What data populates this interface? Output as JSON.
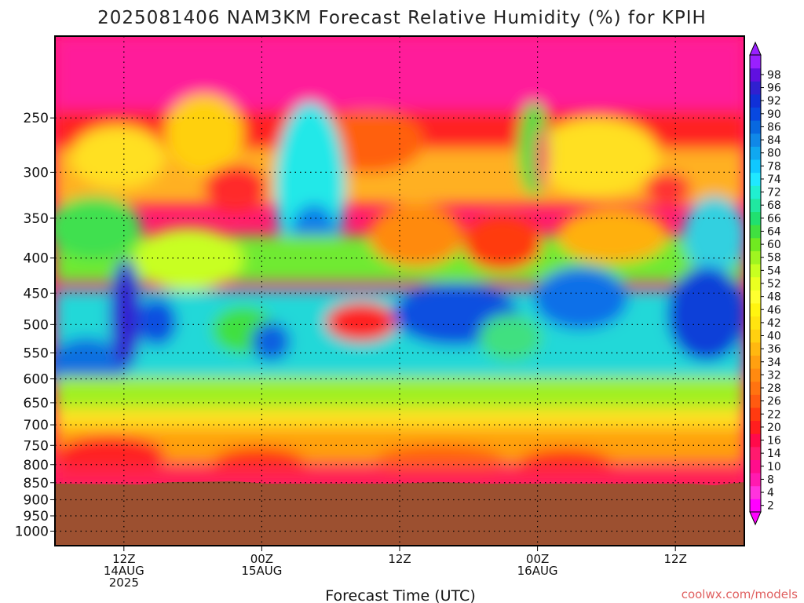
{
  "chart_data": {
    "type": "heatmap",
    "title": "2025081406 NAM3KM Forecast Relative Humidity (%) for KPIH",
    "xlabel": "Forecast Time (UTC)",
    "ylabel": "",
    "y_scale": "log-pressure (hPa), inverted",
    "ylim": [
      1050,
      190
    ],
    "y_ticks": [
      250,
      300,
      350,
      400,
      450,
      500,
      550,
      600,
      650,
      700,
      750,
      800,
      850,
      900,
      950,
      1000
    ],
    "x_ticks": [
      {
        "time": "2025-08-14 12Z",
        "lines": [
          "12Z",
          "14AUG",
          "2025"
        ]
      },
      {
        "time": "2025-08-15 00Z",
        "lines": [
          "00Z",
          "15AUG"
        ]
      },
      {
        "time": "2025-08-15 12Z",
        "lines": [
          "12Z"
        ]
      },
      {
        "time": "2025-08-16 00Z",
        "lines": [
          "00Z",
          "16AUG"
        ]
      },
      {
        "time": "2025-08-16 12Z",
        "lines": [
          "12Z"
        ]
      }
    ],
    "xlim": [
      "2025-08-14 06Z",
      "2025-08-16 18Z"
    ],
    "grid": true,
    "colorbar_levels": [
      2,
      4,
      8,
      10,
      14,
      16,
      20,
      22,
      26,
      28,
      32,
      34,
      36,
      40,
      42,
      46,
      48,
      52,
      54,
      58,
      60,
      64,
      66,
      68,
      72,
      74,
      78,
      80,
      84,
      86,
      90,
      92,
      96,
      98
    ],
    "colorbar_colors": [
      "#ff00ff",
      "#ff33dd",
      "#ff1ab0",
      "#ff0d8c",
      "#ff1a6e",
      "#ff0a4a",
      "#ff1e1e",
      "#ff3a10",
      "#ff5a10",
      "#ff7310",
      "#ff8a10",
      "#ffa010",
      "#ffb810",
      "#ffd010",
      "#ffe410",
      "#fff510",
      "#ffff30",
      "#eaff20",
      "#c8ff20",
      "#a0f520",
      "#70ea20",
      "#40e040",
      "#20e070",
      "#20e8a0",
      "#20f0d0",
      "#20e8ff",
      "#10c8ff",
      "#10a8f0",
      "#1088e8",
      "#0868e0",
      "#0848e0",
      "#1030d8",
      "#3020d0",
      "#6010e0",
      "#9a20ff"
    ],
    "terrain_color": "#9c5030",
    "credit": "coolwx.com/models"
  }
}
